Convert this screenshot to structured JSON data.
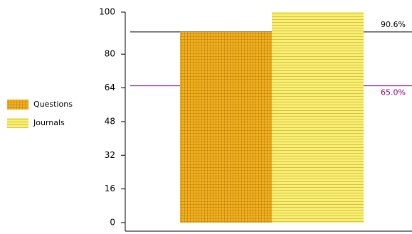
{
  "chart_data": {
    "type": "bar",
    "categories": [
      null
    ],
    "series": [
      {
        "name": "Questions",
        "color": "#f0b020",
        "pattern": "grid",
        "values": [
          90.6
        ]
      },
      {
        "name": "Journals",
        "color": "#f8f070",
        "pattern": "horizontal-lines",
        "values": [
          100
        ]
      }
    ],
    "reference_lines": [
      {
        "value": 90.6,
        "label": "90.6%",
        "color": "#000000"
      },
      {
        "value": 65,
        "label": "65.0%",
        "color": "#800080"
      }
    ],
    "ylim": [
      0,
      100
    ],
    "yticks": [
      0,
      16,
      32,
      48,
      64,
      80,
      100
    ],
    "legend": "left"
  }
}
